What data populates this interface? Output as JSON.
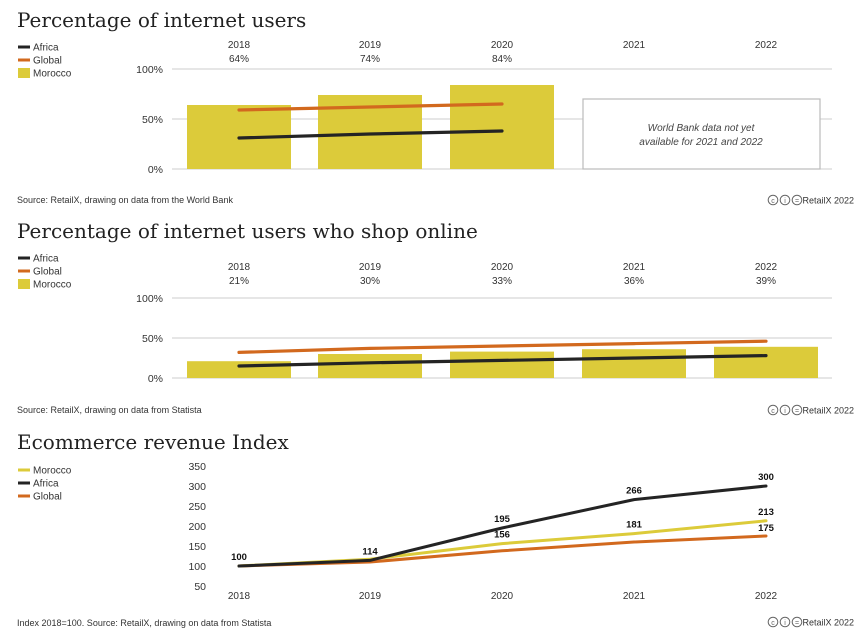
{
  "colors": {
    "morocco": "#dccb3a",
    "africa": "#242424",
    "global": "#d2691e",
    "grid": "#cccccc"
  },
  "credit": "RetailX 2022",
  "chart_data": [
    {
      "type": "bar",
      "title": "Percentage of internet users",
      "legend": [
        "Africa",
        "Global",
        "Morocco"
      ],
      "categories": [
        "2018",
        "2019",
        "2020",
        "2021",
        "2022"
      ],
      "value_labels": [
        "64%",
        "74%",
        "84%",
        "",
        ""
      ],
      "y_ticks": [
        "100%",
        "50%",
        "0%"
      ],
      "ylim": [
        0,
        100
      ],
      "series": [
        {
          "name": "Morocco",
          "kind": "bar",
          "values": [
            64,
            74,
            84,
            null,
            null
          ]
        },
        {
          "name": "Global",
          "kind": "line",
          "values": [
            59,
            62,
            65,
            null,
            null
          ]
        },
        {
          "name": "Africa",
          "kind": "line",
          "values": [
            31,
            35,
            38,
            null,
            null
          ]
        }
      ],
      "note_line1": "World Bank data not yet",
      "note_line2": "available for 2021 and 2022",
      "source": "Source: RetailX, drawing on data from the World Bank"
    },
    {
      "type": "bar",
      "title": "Percentage of internet users who shop online",
      "legend": [
        "Africa",
        "Global",
        "Morocco"
      ],
      "categories": [
        "2018",
        "2019",
        "2020",
        "2021",
        "2022"
      ],
      "value_labels": [
        "21%",
        "30%",
        "33%",
        "36%",
        "39%"
      ],
      "y_ticks": [
        "100%",
        "50%",
        "0%"
      ],
      "ylim": [
        0,
        100
      ],
      "series": [
        {
          "name": "Morocco",
          "kind": "bar",
          "values": [
            21,
            30,
            33,
            36,
            39
          ]
        },
        {
          "name": "Global",
          "kind": "line",
          "values": [
            32,
            37,
            40,
            43,
            46
          ]
        },
        {
          "name": "Africa",
          "kind": "line",
          "values": [
            15,
            19,
            22,
            25,
            28
          ]
        }
      ],
      "source": "Source: RetailX, drawing on data from Statista"
    },
    {
      "type": "line",
      "title": "Ecommerce revenue Index",
      "legend": [
        "Morocco",
        "Africa",
        "Global"
      ],
      "categories": [
        "2018",
        "2019",
        "2020",
        "2021",
        "2022"
      ],
      "y_ticks": [
        "350",
        "300",
        "250",
        "200",
        "150",
        "100",
        "50"
      ],
      "ylim": [
        50,
        350
      ],
      "series": [
        {
          "name": "Morocco",
          "values": [
            100,
            117,
            156,
            181,
            213
          ]
        },
        {
          "name": "Africa",
          "values": [
            100,
            114,
            195,
            266,
            300
          ]
        },
        {
          "name": "Global",
          "values": [
            100,
            110,
            138,
            160,
            175
          ]
        }
      ],
      "labels": {
        "Africa": [
          "100",
          "114",
          "195",
          "266",
          "300"
        ],
        "Morocco": [
          "",
          "",
          "156",
          "181",
          "213"
        ],
        "Global": [
          "",
          "",
          "",
          "",
          "175"
        ]
      },
      "source": "Index 2018=100. Source: RetailX, drawing on data from Statista"
    }
  ]
}
